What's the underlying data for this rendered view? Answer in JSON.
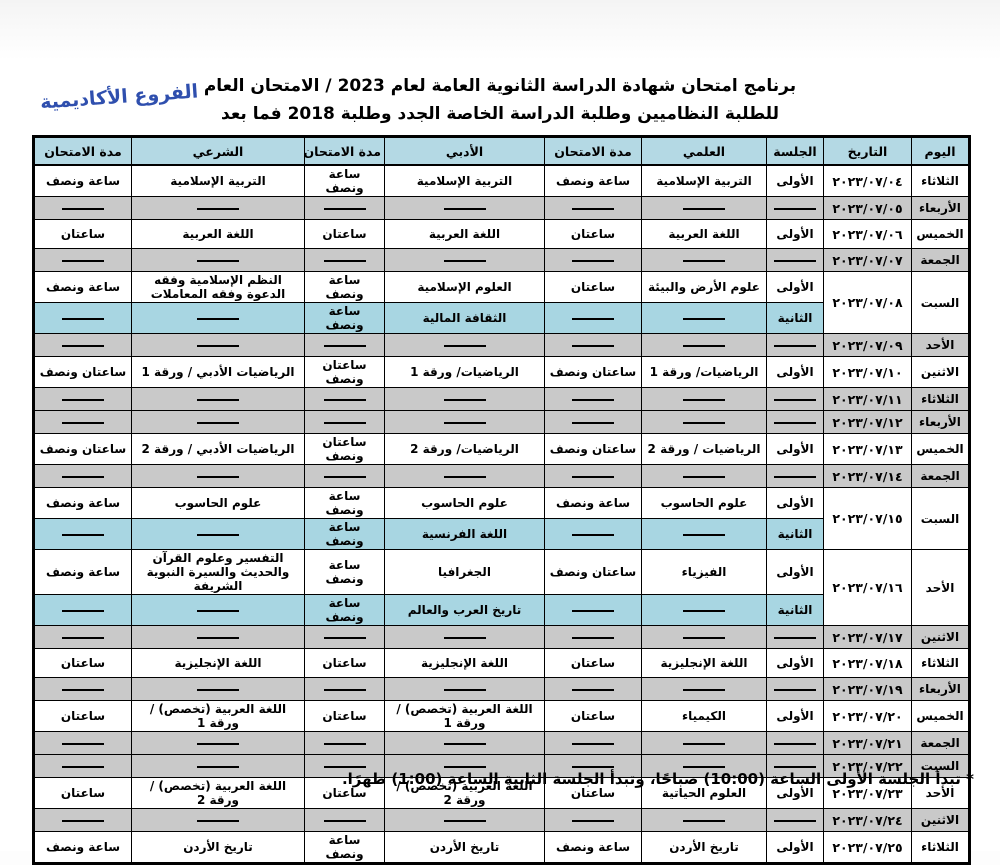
{
  "page": {
    "title_line1": "برنامج امتحان شهادة الدراسة الثانوية العامة  لعام 2023 / الامتحان العام",
    "title_line2": "للطلبة النظاميين وطلبة الدراسة الخاصة الجدد  وطلبة 2018 فما بعد",
    "branch_label": "الفروع الأكاديمية",
    "footnote": "* تبدأ الجلسة الأولى الساعة (10:00) صباحًا، وتبدأ الجلسة الثانية الساعة  (1:00) ظهرًا."
  },
  "colors": {
    "header_bg": "#b4d9e4",
    "gray_row_bg": "#c9c9c9",
    "blue_row_bg": "#a8d6e2",
    "white_row_bg": "#ffffff",
    "border": "#000000",
    "branch_label_color": "#2f4fae"
  },
  "table": {
    "headers": [
      "اليوم",
      "التاريخ",
      "الجلسة",
      "العلمي",
      "مدة الامتحان",
      "الأدبي",
      "مدة الامتحان",
      "الشرعي",
      "مدة الامتحان"
    ],
    "session_first": "الأولى",
    "session_second": "الثانية",
    "rows": [
      {
        "day": "الثلاثاء",
        "date": "٢٠٢٣/٠٧/٠٤",
        "bg": "white",
        "session": "الأولى",
        "sci": "التربية الإسلامية",
        "sci_d": "ساعة ونصف",
        "lit": "التربية الإسلامية",
        "lit_d": "ساعة ونصف",
        "shar": "التربية الإسلامية",
        "shar_d": "ساعة ونصف"
      },
      {
        "day": "الأربعاء",
        "date": "٢٠٢٣/٠٧/٠٥",
        "bg": "gray"
      },
      {
        "day": "الخميس",
        "date": "٢٠٢٣/٠٧/٠٦",
        "bg": "white",
        "session": "الأولى",
        "sci": "اللغة العربية",
        "sci_d": "ساعتان",
        "lit": "اللغة العربية",
        "lit_d": "ساعتان",
        "shar": "اللغة العربية",
        "shar_d": "ساعتان"
      },
      {
        "day": "الجمعة",
        "date": "٢٠٢٣/٠٧/٠٧",
        "bg": "gray"
      },
      {
        "day": "السبت",
        "date": "٢٠٢٣/٠٧/٠٨",
        "rowspan": 2,
        "bg": "white",
        "session": "الأولى",
        "sci": "علوم الأرض والبيئة",
        "sci_d": "ساعتان",
        "lit": "العلوم الإسلامية",
        "lit_d": "ساعة ونصف",
        "shar": "النظم الإسلامية وفقه الدعوة وفقه المعاملات",
        "shar_d": "ساعة ونصف"
      },
      {
        "day": null,
        "bg": "blue",
        "session": "الثانية",
        "lit": "الثقافة المالية",
        "lit_d": "ساعة ونصف"
      },
      {
        "day": "الأحد",
        "date": "٢٠٢٣/٠٧/٠٩",
        "bg": "gray"
      },
      {
        "day": "الاثنين",
        "date": "٢٠٢٣/٠٧/١٠",
        "bg": "white",
        "session": "الأولى",
        "sci": "الرياضيات/ ورقة 1",
        "sci_d": "ساعتان ونصف",
        "lit": "الرياضيات/ ورقة 1",
        "lit_d": "ساعتان ونصف",
        "shar": "الرياضيات الأدبي / ورقة 1",
        "shar_d": "ساعتان ونصف"
      },
      {
        "day": "الثلاثاء",
        "date": "٢٠٢٣/٠٧/١١",
        "bg": "gray"
      },
      {
        "day": "الأربعاء",
        "date": "٢٠٢٣/٠٧/١٢",
        "bg": "gray"
      },
      {
        "day": "الخميس",
        "date": "٢٠٢٣/٠٧/١٣",
        "bg": "white",
        "session": "الأولى",
        "sci": "الرياضيات / ورقة 2",
        "sci_d": "ساعتان ونصف",
        "lit": "الرياضيات/ ورقة 2",
        "lit_d": "ساعتان ونصف",
        "shar": "الرياضيات الأدبي / ورقة 2",
        "shar_d": "ساعتان ونصف"
      },
      {
        "day": "الجمعة",
        "date": "٢٠٢٣/٠٧/١٤",
        "bg": "gray"
      },
      {
        "day": "السبت",
        "date": "٢٠٢٣/٠٧/١٥",
        "rowspan": 2,
        "bg": "white",
        "session": "الأولى",
        "sci": "علوم الحاسوب",
        "sci_d": "ساعة ونصف",
        "lit": "علوم الحاسوب",
        "lit_d": "ساعة ونصف",
        "shar": "علوم الحاسوب",
        "shar_d": "ساعة ونصف"
      },
      {
        "day": null,
        "bg": "blue",
        "session": "الثانية",
        "lit": "اللغة الفرنسية",
        "lit_d": "ساعة ونصف"
      },
      {
        "day": "الأحد",
        "date": "٢٠٢٣/٠٧/١٦",
        "rowspan": 2,
        "bg": "white",
        "session": "الأولى",
        "sci": "الفيزياء",
        "sci_d": "ساعتان ونصف",
        "lit": "الجغرافيا",
        "lit_d": "ساعة ونصف",
        "shar": "التفسير وعلوم القرآن والحديث والسيرة النبوية الشريفة",
        "shar_d": "ساعة ونصف"
      },
      {
        "day": null,
        "bg": "blue",
        "session": "الثانية",
        "lit": "تاريخ العرب والعالم",
        "lit_d": "ساعة ونصف"
      },
      {
        "day": "الاثنين",
        "date": "٢٠٢٣/٠٧/١٧",
        "bg": "gray"
      },
      {
        "day": "الثلاثاء",
        "date": "٢٠٢٣/٠٧/١٨",
        "bg": "white",
        "session": "الأولى",
        "sci": "اللغة الإنجليزية",
        "sci_d": "ساعتان",
        "lit": "اللغة الإنجليزية",
        "lit_d": "ساعتان",
        "shar": "اللغة الإنجليزية",
        "shar_d": "ساعتان"
      },
      {
        "day": "الأربعاء",
        "date": "٢٠٢٣/٠٧/١٩",
        "bg": "gray"
      },
      {
        "day": "الخميس",
        "date": "٢٠٢٣/٠٧/٢٠",
        "bg": "white",
        "session": "الأولى",
        "sci": "الكيمياء",
        "sci_d": "ساعتان",
        "lit": "اللغة العربية (تخصص) / ورقة 1",
        "lit_d": "ساعتان",
        "shar": "اللغة العربية (تخصص) / ورقة 1",
        "shar_d": "ساعتان"
      },
      {
        "day": "الجمعة",
        "date": "٢٠٢٣/٠٧/٢١",
        "bg": "gray"
      },
      {
        "day": "السبت",
        "date": "٢٠٢٣/٠٧/٢٢",
        "bg": "gray"
      },
      {
        "day": "الأحد",
        "date": "٢٠٢٣/٠٧/٢٣",
        "bg": "white",
        "session": "الأولى",
        "sci": "العلوم الحياتية",
        "sci_d": "ساعتان",
        "lit": "اللغة العربية (تخصص) / ورقة 2",
        "lit_d": "ساعتان",
        "shar": "اللغة العربية (تخصص) / ورقة 2",
        "shar_d": "ساعتان"
      },
      {
        "day": "الاثنين",
        "date": "٢٠٢٣/٠٧/٢٤",
        "bg": "gray"
      },
      {
        "day": "الثلاثاء",
        "date": "٢٠٢٣/٠٧/٢٥",
        "bg": "white",
        "session": "الأولى",
        "sci": "تاريخ الأردن",
        "sci_d": "ساعة ونصف",
        "lit": "تاريخ الأردن",
        "lit_d": "ساعة ونصف",
        "shar": "تاريخ الأردن",
        "shar_d": "ساعة ونصف"
      }
    ]
  }
}
